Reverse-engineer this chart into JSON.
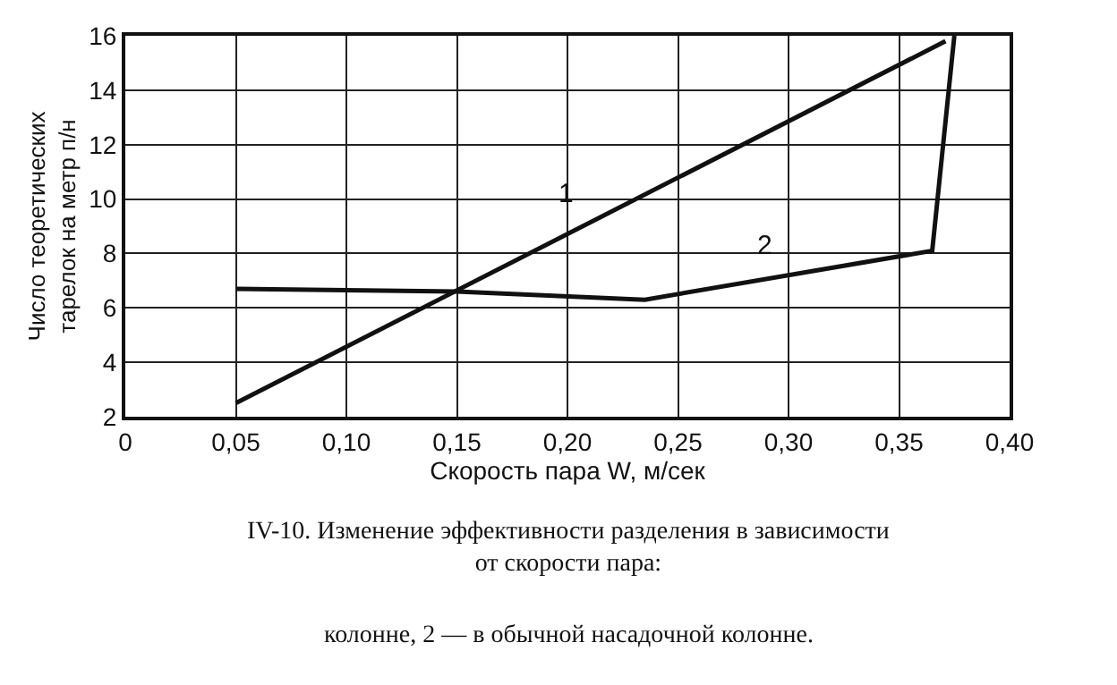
{
  "chart_data": {
    "type": "line",
    "xlabel": "Скорость пара W, м/сек",
    "ylabel": "Число теоретических\nтарелок на метр п/н",
    "series": [
      {
        "name": "1",
        "color": "#111111",
        "x": [
          0.05,
          0.371
        ],
        "values": [
          2.5,
          15.8
        ]
      },
      {
        "name": "2",
        "color": "#111111",
        "x": [
          0.05,
          0.15,
          0.235,
          0.365,
          0.375
        ],
        "values": [
          6.7,
          6.6,
          6.3,
          8.1,
          16.0
        ]
      }
    ],
    "xlim": [
      0,
      0.4
    ],
    "xticks": [
      0,
      {
        "value": 0.05,
        "label": "0,05"
      },
      {
        "value": 0.1,
        "label": "0,10"
      },
      {
        "value": 0.15,
        "label": "0,15"
      },
      {
        "value": 0.2,
        "label": "0,20"
      },
      {
        "value": 0.25,
        "label": "0,25"
      },
      {
        "value": 0.3,
        "label": "0,30"
      },
      {
        "value": 0.35,
        "label": "0,35"
      },
      {
        "value": 0.4,
        "label": "0,40"
      }
    ],
    "ylim": [
      2,
      16
    ],
    "yticks": [
      2,
      4,
      6,
      8,
      10,
      12,
      14,
      16
    ],
    "grid": true,
    "legend": false,
    "marker": "none",
    "line_style": "solid",
    "annotations": [
      "IV-10. Изменение эффективности разделения в зависимости\nот скорости пара:",
      "колонне, 2 — в обычной насадочной колонне."
    ]
  }
}
